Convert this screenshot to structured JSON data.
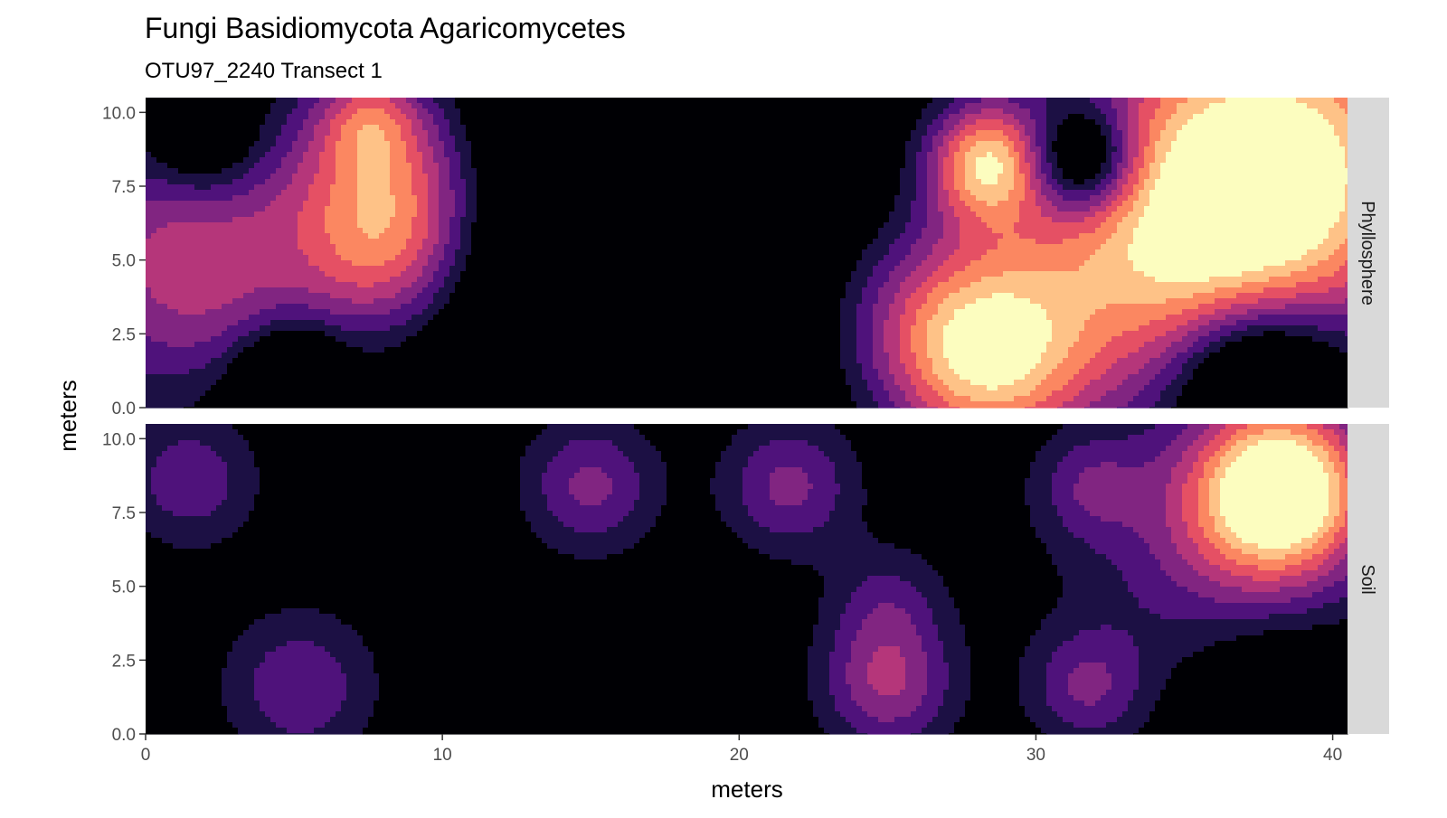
{
  "chart_data": {
    "type": "heatmap",
    "title": "Fungi Basidiomycota Agaricomycetes",
    "subtitle": "OTU97_2240 Transect 1",
    "xlabel": "meters",
    "ylabel": "meters",
    "xlim": [
      0,
      40.5
    ],
    "ylim": [
      0,
      10.5
    ],
    "x_ticks": [
      "0",
      "10",
      "20",
      "30",
      "40"
    ],
    "x_tick_values": [
      0,
      10,
      20,
      30,
      40
    ],
    "y_ticks": [
      "0.0",
      "2.5",
      "5.0",
      "7.5",
      "10.0"
    ],
    "y_tick_values": [
      0,
      2.5,
      5,
      7.5,
      10
    ],
    "grid": false,
    "legend": "none",
    "color_levels": [
      "#000004",
      "#1c1044",
      "#4f127b",
      "#812581",
      "#b5367a",
      "#e55064",
      "#fb8761",
      "#fec287",
      "#fcfdbf"
    ],
    "facets": [
      {
        "name": "Phyllosphere",
        "base": -0.2,
        "hotspots": [
          {
            "x": 1.7,
            "y": 4.9,
            "v": 5.0,
            "s": 3.2
          },
          {
            "x": 8.3,
            "y": 8.2,
            "v": 5.3,
            "s": 2.4
          },
          {
            "x": 8.2,
            "y": 5.1,
            "v": 4.9,
            "s": 2.2
          },
          {
            "x": 7.5,
            "y": 9.8,
            "v": 3.0,
            "s": 1.2
          },
          {
            "x": 2.0,
            "y": 9.0,
            "v": -3.0,
            "s": 1.3
          },
          {
            "x": 5.0,
            "y": 1.3,
            "v": -3.2,
            "s": 1.1
          },
          {
            "x": 4.0,
            "y": 0.3,
            "v": -1.6,
            "s": 1.4
          },
          {
            "x": 18.3,
            "y": 1.6,
            "v": 3.2,
            "s": 1.3
          },
          {
            "x": 16.0,
            "y": 5.5,
            "v": -4.0,
            "s": 5.5
          },
          {
            "x": 25.3,
            "y": 3.3,
            "v": 2.3,
            "s": 2.4
          },
          {
            "x": 28.3,
            "y": 1.7,
            "v": 7.2,
            "s": 2.4
          },
          {
            "x": 28.3,
            "y": 8.3,
            "v": 6.5,
            "s": 1.4
          },
          {
            "x": 33.0,
            "y": 5.5,
            "v": 5.0,
            "s": 4.0
          },
          {
            "x": 31.6,
            "y": 8.4,
            "v": -6.2,
            "s": 1.3
          },
          {
            "x": 38.3,
            "y": 8.3,
            "v": 8.6,
            "s": 3.8
          },
          {
            "x": 37.0,
            "y": 3.0,
            "v": 2.0,
            "s": 3.0
          },
          {
            "x": 37.5,
            "y": 1.1,
            "v": -6.8,
            "s": 2.0
          }
        ]
      },
      {
        "name": "Soil",
        "base": 0.0,
        "hotspots": [
          {
            "x": 1.5,
            "y": 8.6,
            "v": 2.8,
            "s": 1.6
          },
          {
            "x": 5.2,
            "y": 1.6,
            "v": 2.9,
            "s": 1.8
          },
          {
            "x": 15.0,
            "y": 8.4,
            "v": 3.3,
            "s": 1.6
          },
          {
            "x": 21.7,
            "y": 8.4,
            "v": 3.3,
            "s": 1.6
          },
          {
            "x": 25.0,
            "y": 1.7,
            "v": 4.0,
            "s": 1.6
          },
          {
            "x": 25.0,
            "y": 4.5,
            "v": 2.0,
            "s": 1.4
          },
          {
            "x": 31.7,
            "y": 1.6,
            "v": 2.9,
            "s": 1.4
          },
          {
            "x": 31.8,
            "y": 8.4,
            "v": 2.2,
            "s": 1.3
          },
          {
            "x": 38.3,
            "y": 8.3,
            "v": 8.6,
            "s": 2.0
          },
          {
            "x": 37.0,
            "y": 7.0,
            "v": 2.5,
            "s": 3.2
          },
          {
            "x": 35.0,
            "y": 6.0,
            "v": 1.0,
            "s": 3.5
          },
          {
            "x": 38.0,
            "y": 1.6,
            "v": -2.0,
            "s": 2.0
          }
        ]
      }
    ]
  }
}
